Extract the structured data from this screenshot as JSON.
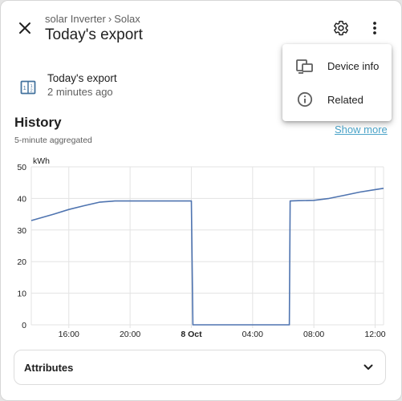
{
  "header": {
    "breadcrumb": [
      "solar Inverter",
      "Solax"
    ],
    "title": "Today's export"
  },
  "entity": {
    "name": "Today's export",
    "last_changed": "2 minutes ago"
  },
  "history": {
    "title": "History",
    "subtitle": "5-minute aggregated",
    "show_more": "Show more"
  },
  "chart_data": {
    "type": "line",
    "ylabel": "kWh",
    "ylim": [
      0,
      50
    ],
    "yticks": [
      "0",
      "10",
      "20",
      "30",
      "40",
      "50"
    ],
    "xticks": [
      "16:00",
      "20:00",
      "8 Oct",
      "04:00",
      "08:00",
      "12:00"
    ],
    "xlim": [
      13.55,
      36.55
    ],
    "series": [
      {
        "color": "#4f74b0",
        "x": [
          13.55,
          15.0,
          16.0,
          17.0,
          18.0,
          18.8,
          19.0,
          20.0,
          21.0,
          22.0,
          23.0,
          24.0,
          24.1,
          25.0,
          28.0,
          30.0,
          30.4,
          30.45,
          31.0,
          32.0,
          33.0,
          34.0,
          35.0,
          36.0,
          36.55
        ],
        "y": [
          33.0,
          35.0,
          36.5,
          37.7,
          38.8,
          39.1,
          39.2,
          39.2,
          39.2,
          39.2,
          39.2,
          39.2,
          0.0,
          0.0,
          0.0,
          0.0,
          0.0,
          39.2,
          39.3,
          39.4,
          40.0,
          41.0,
          42.0,
          42.8,
          43.2
        ]
      }
    ]
  },
  "attributes": {
    "label": "Attributes"
  },
  "menu": {
    "items": [
      {
        "label": "Device info",
        "icon": "devices-icon"
      },
      {
        "label": "Related",
        "icon": "info-icon"
      }
    ]
  }
}
